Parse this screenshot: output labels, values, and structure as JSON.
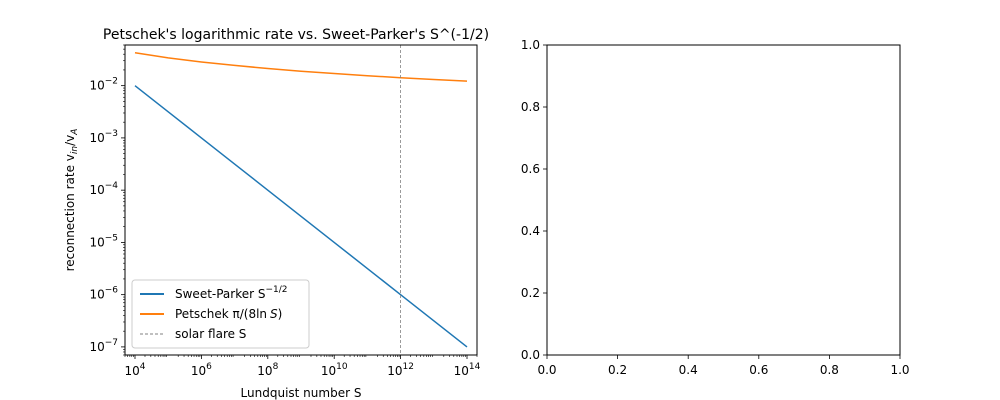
{
  "chart_data": [
    {
      "type": "line",
      "title": "Petschek's logarithmic rate vs. Sweet-Parker's S^(-1/2)",
      "xlabel": "Lundquist number S",
      "ylabel_main": "reconnection rate v",
      "ylabel_sub1": "in",
      "ylabel_slash": "/v",
      "ylabel_sub2": "A",
      "xscale": "log",
      "yscale": "log",
      "xlim": [
        5000,
        200000000000000
      ],
      "ylim": [
        7e-08,
        0.06
      ],
      "grid": false,
      "legend_position": "lower-left",
      "x_ticks": [
        {
          "value": 10000,
          "base": "10",
          "exp": "4"
        },
        {
          "value": 1000000,
          "base": "10",
          "exp": "6"
        },
        {
          "value": 100000000,
          "base": "10",
          "exp": "8"
        },
        {
          "value": 10000000000,
          "base": "10",
          "exp": "10"
        },
        {
          "value": 1000000000000,
          "base": "10",
          "exp": "12"
        },
        {
          "value": 100000000000000,
          "base": "10",
          "exp": "14"
        }
      ],
      "y_ticks": [
        {
          "value": 1e-07,
          "base": "10",
          "exp": "−7"
        },
        {
          "value": 1e-06,
          "base": "10",
          "exp": "−6"
        },
        {
          "value": 1e-05,
          "base": "10",
          "exp": "−5"
        },
        {
          "value": 0.0001,
          "base": "10",
          "exp": "−4"
        },
        {
          "value": 0.001,
          "base": "10",
          "exp": "−3"
        },
        {
          "value": 0.01,
          "base": "10",
          "exp": "−2"
        }
      ],
      "series": [
        {
          "name": "Sweet-Parker S",
          "name_sup": "−1/2",
          "color": "#1f77b4",
          "x": [
            10000,
            100000,
            1000000,
            10000000,
            100000000,
            1000000000,
            10000000000,
            100000000000,
            1000000000000,
            10000000000000,
            100000000000000
          ],
          "y": [
            0.01,
            0.00316,
            0.001,
            0.000316,
            0.0001,
            3.16e-05,
            1e-05,
            3.16e-06,
            1e-06,
            3.16e-07,
            1e-07
          ]
        },
        {
          "name": "Petschek π/(8ln",
          "name_italic": "S",
          "name_tail": ")",
          "color": "#ff7f0e",
          "x": [
            10000,
            100000,
            1000000,
            10000000,
            100000000,
            1000000000,
            10000000000,
            100000000000,
            1000000000000,
            10000000000000,
            100000000000000
          ],
          "y": [
            0.0426,
            0.0341,
            0.0284,
            0.0244,
            0.0213,
            0.0189,
            0.0171,
            0.0155,
            0.0142,
            0.0131,
            0.0122
          ]
        }
      ],
      "vline": {
        "name": "solar flare S",
        "x": 1000000000000,
        "color": "#808080"
      }
    },
    {
      "type": "line",
      "xlim": [
        0,
        1
      ],
      "ylim": [
        0,
        1
      ],
      "x_ticks": [
        0.0,
        0.2,
        0.4,
        0.6,
        0.8,
        1.0
      ],
      "x_tick_labels": [
        "0.0",
        "0.2",
        "0.4",
        "0.6",
        "0.8",
        "1.0"
      ],
      "y_ticks": [
        0.0,
        0.2,
        0.4,
        0.6,
        0.8,
        1.0
      ],
      "y_tick_labels": [
        "0.0",
        "0.2",
        "0.4",
        "0.6",
        "0.8",
        "1.0"
      ],
      "series": []
    }
  ]
}
